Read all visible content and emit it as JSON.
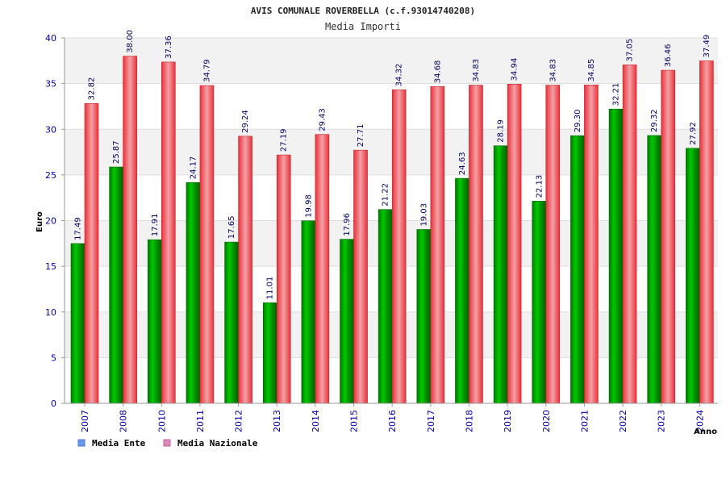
{
  "chart_data": {
    "type": "bar",
    "title": "AVIS COMUNALE ROVERBELLA (c.f.93014740208)",
    "subtitle": "Media Importi",
    "xlabel": "Anno",
    "ylabel": "Euro",
    "ylim": [
      0,
      40
    ],
    "yticks": [
      0,
      5,
      10,
      15,
      20,
      25,
      30,
      35,
      40
    ],
    "grid": true,
    "legend_position": "bottom-left",
    "categories": [
      "2007",
      "2008",
      "2010",
      "2011",
      "2012",
      "2013",
      "2014",
      "2015",
      "2016",
      "2017",
      "2018",
      "2019",
      "2020",
      "2021",
      "2022",
      "2023",
      "2024"
    ],
    "series": [
      {
        "name": "Media Ente",
        "color": "#11a611",
        "legend_color": "#6699ee",
        "values": [
          17.49,
          25.87,
          17.91,
          24.17,
          17.65,
          11.01,
          19.98,
          17.96,
          21.22,
          19.03,
          24.63,
          28.19,
          22.13,
          29.3,
          32.21,
          29.32,
          27.92
        ],
        "labels": [
          "17.49",
          "25.87",
          "17.91",
          "24.17",
          "17.65",
          "11.01",
          "19.98",
          "17.96",
          "21.22",
          "19.03",
          "24.63",
          "28.19",
          "22.13",
          "29.30",
          "32.21",
          "29.32",
          "27.92"
        ]
      },
      {
        "name": "Media Nazionale",
        "color": "#e8323a",
        "legend_color": "#dd88bb",
        "values": [
          32.82,
          38.0,
          37.36,
          34.79,
          29.24,
          27.19,
          29.43,
          27.71,
          34.32,
          34.68,
          34.83,
          34.94,
          34.83,
          34.85,
          37.05,
          36.46,
          37.49
        ],
        "labels": [
          "32.82",
          "38.00",
          "37.36",
          "34.79",
          "29.24",
          "27.19",
          "29.43",
          "27.71",
          "34.32",
          "34.68",
          "34.83",
          "34.94",
          "34.83",
          "34.85",
          "37.05",
          "36.46",
          "37.49"
        ]
      }
    ]
  }
}
